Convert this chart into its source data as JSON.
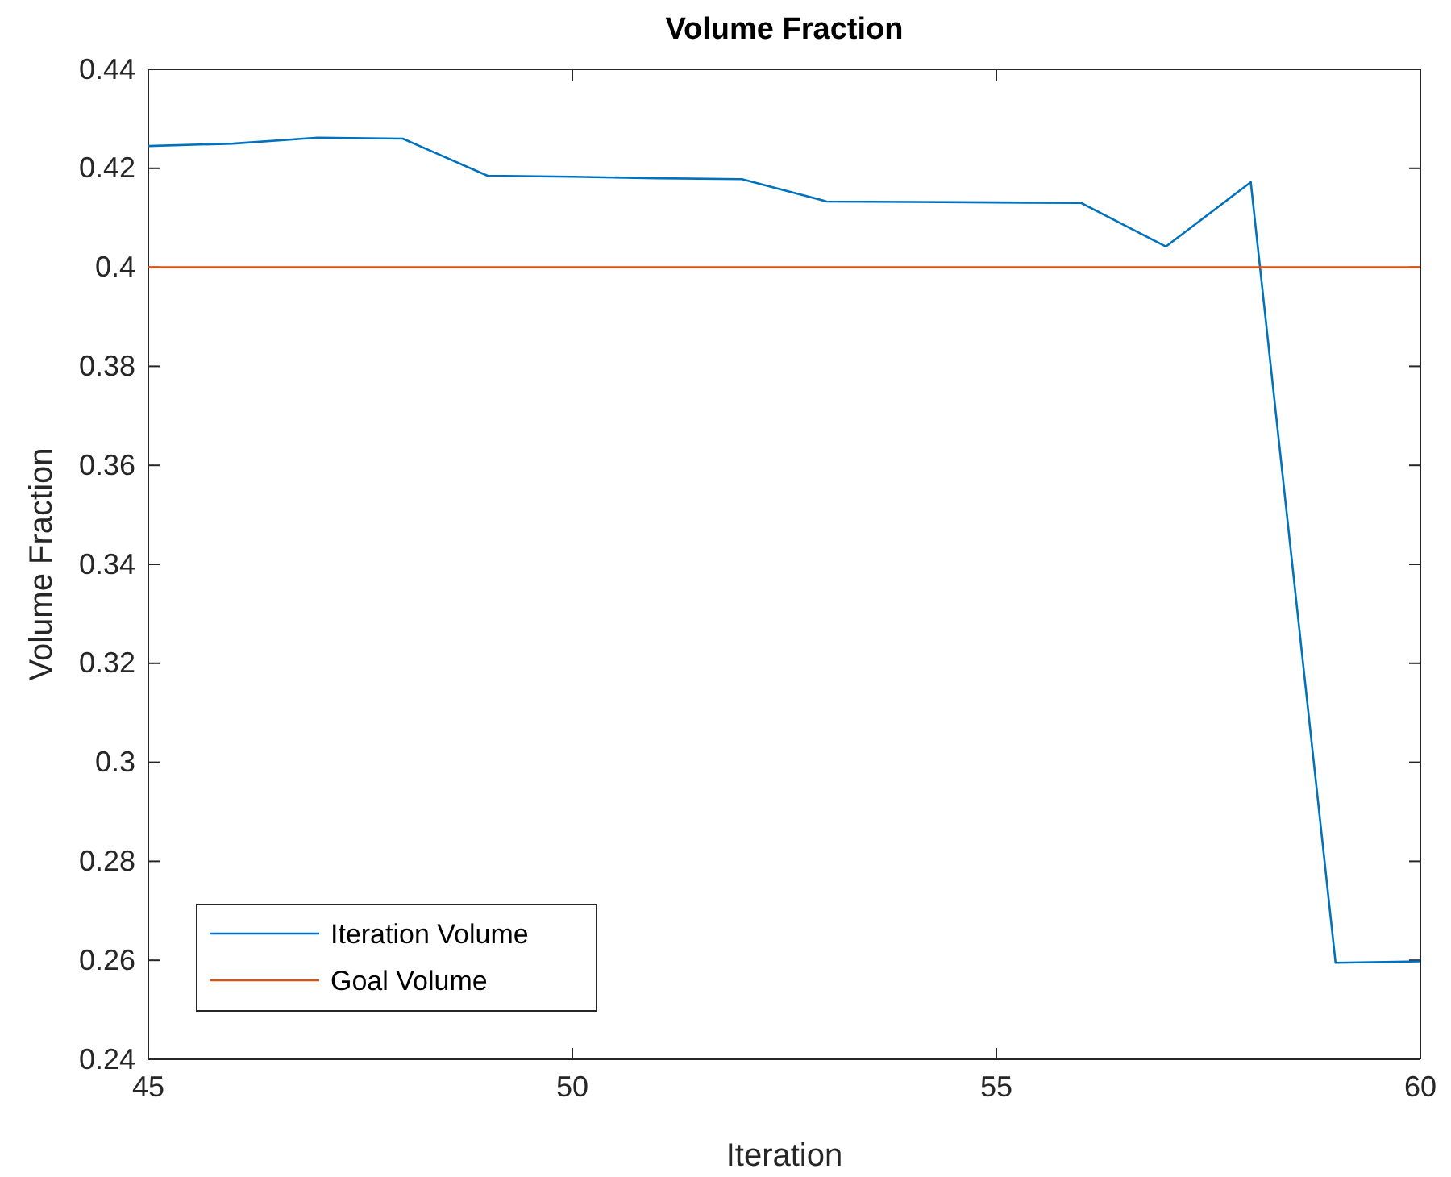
{
  "chart_data": {
    "type": "line",
    "title": "Volume Fraction",
    "xlabel": "Iteration",
    "ylabel": "Volume Fraction",
    "xlim": [
      45,
      60
    ],
    "xticks": [
      45,
      50,
      55,
      60
    ],
    "ylim": [
      0.24,
      0.44
    ],
    "yticks": [
      0.24,
      0.26,
      0.28,
      0.3,
      0.32,
      0.34,
      0.36,
      0.38,
      0.4,
      0.42,
      0.44
    ],
    "series": [
      {
        "name": "Iteration Volume",
        "color": "#0072bd",
        "x": [
          45,
          46,
          47,
          48,
          49,
          50,
          51,
          52,
          53,
          54,
          55,
          56,
          57,
          58,
          59,
          60
        ],
        "values": [
          0.4245,
          0.425,
          0.4262,
          0.426,
          0.4185,
          0.4183,
          0.418,
          0.4178,
          0.4133,
          0.4132,
          0.4131,
          0.413,
          0.4042,
          0.4172,
          0.2595,
          0.2598
        ]
      },
      {
        "name": "Goal Volume",
        "color": "#d95319",
        "x": [
          45,
          60
        ],
        "values": [
          0.4,
          0.4
        ]
      }
    ],
    "legend": "bottom left",
    "grid": false
  }
}
